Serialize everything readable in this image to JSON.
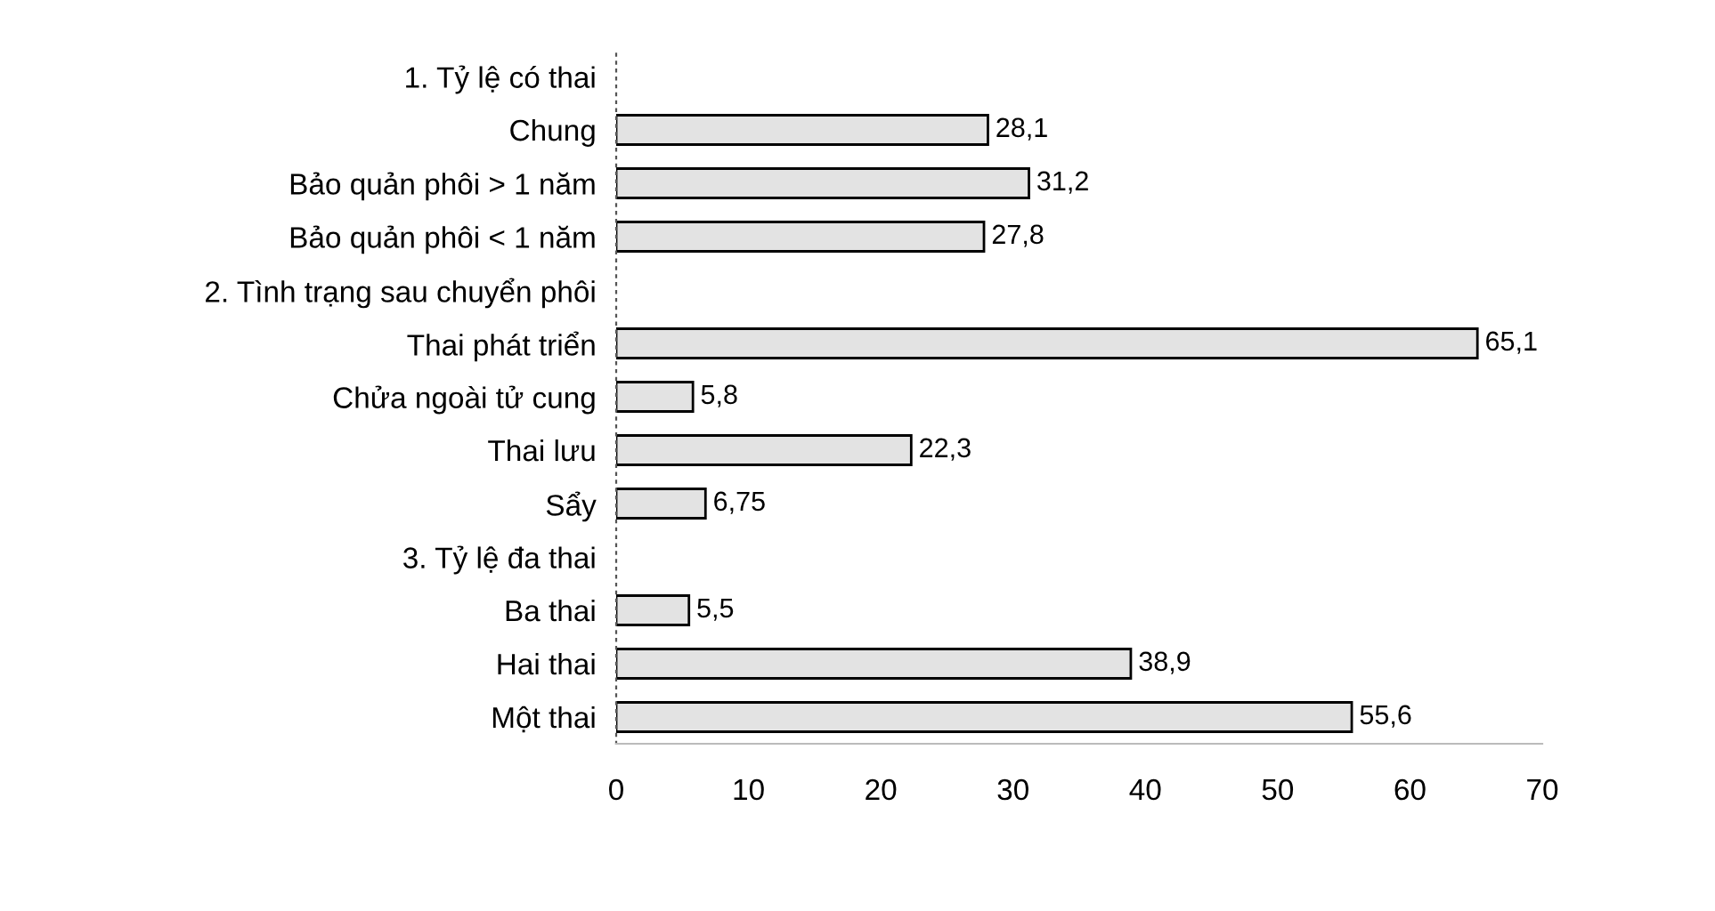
{
  "chart_data": {
    "type": "bar",
    "orientation": "horizontal",
    "categories": [
      "1. Tỷ lệ có thai",
      "Chung",
      "Bảo quản phôi > 1 năm",
      "Bảo quản phôi < 1 năm",
      "2. Tình trạng sau chuyển phôi",
      "Thai phát triển",
      "Chửa ngoài tử cung",
      "Thai lưu",
      "Sẩy",
      "3. Tỷ lệ đa thai",
      "Ba thai",
      "Hai thai",
      "Một thai"
    ],
    "values": [
      null,
      28.1,
      31.2,
      27.8,
      null,
      65.1,
      5.8,
      22.3,
      6.75,
      null,
      5.5,
      38.9,
      55.6
    ],
    "value_labels": [
      null,
      "28,1",
      "31,2",
      "27,8",
      null,
      "65,1",
      "5,8",
      "22,3",
      "6,75",
      null,
      "5,5",
      "38,9",
      "55,6"
    ],
    "color": "#e3e3e3",
    "xlim": [
      0,
      70
    ],
    "xticks": [
      0,
      10,
      20,
      30,
      40,
      50,
      60,
      70
    ],
    "grid": false,
    "legend": false
  }
}
